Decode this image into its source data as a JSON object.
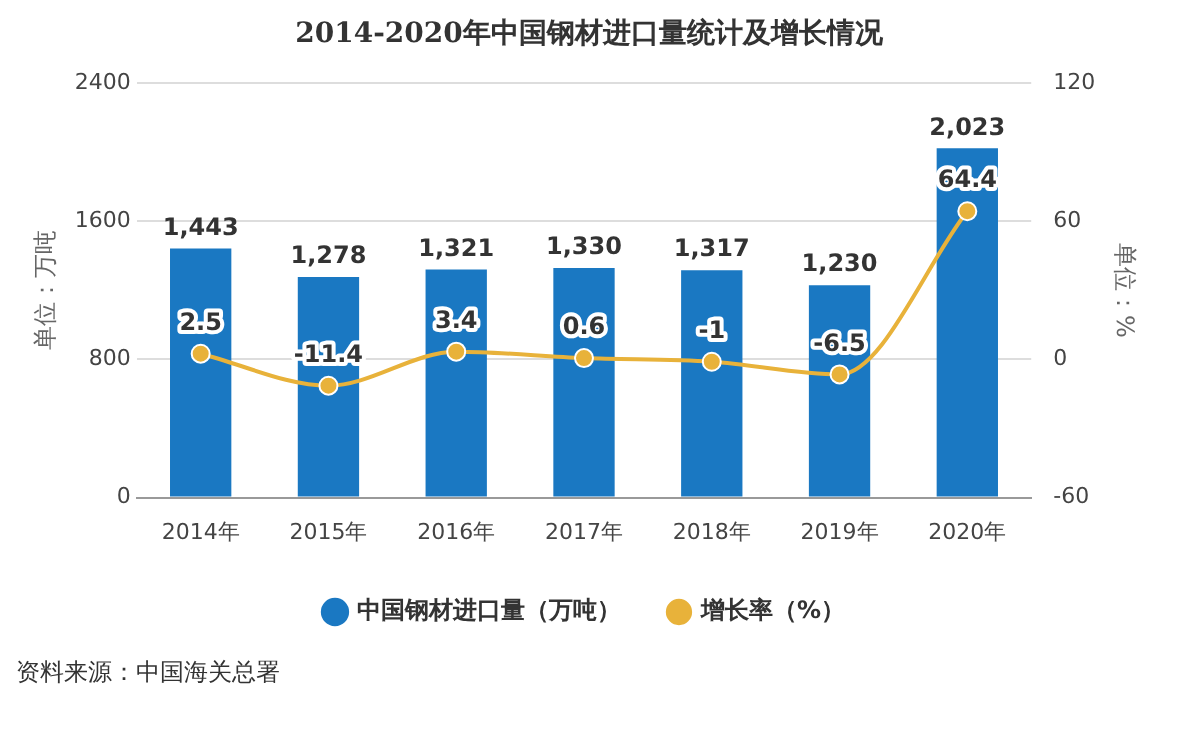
{
  "chart_data": {
    "type": "bar",
    "title": "2014-2020年中国钢材进口量统计及增长情况",
    "categories": [
      "2014年",
      "2015年",
      "2016年",
      "2017年",
      "2018年",
      "2019年",
      "2020年"
    ],
    "series": [
      {
        "name": "中国钢材进口量（万吨）",
        "color": "#1a78c2",
        "values": [
          1443,
          1278,
          1321,
          1330,
          1317,
          1230,
          2023
        ],
        "value_labels": [
          "1,443",
          "1,278",
          "1,321",
          "1,330",
          "1,317",
          "1,230",
          "2,023"
        ]
      },
      {
        "name": "增长率（%）",
        "type": "line",
        "axis": "y2",
        "color": "#e8b23a",
        "values": [
          2.5,
          -11.4,
          3.4,
          0.6,
          -1,
          -6.5,
          64.4
        ],
        "value_labels": [
          "2.5",
          "-11.4",
          "3.4",
          "0.6",
          "-1",
          "-6.5",
          "64.4"
        ]
      }
    ],
    "ylabel": "单位：万吨",
    "y2label": "单位：%",
    "ylim": [
      0,
      2400
    ],
    "yticks": [
      0,
      800,
      1600,
      2400
    ],
    "y2lim": [
      -60,
      120
    ],
    "y2ticks": [
      -60,
      0,
      60,
      120
    ],
    "grid": "y",
    "legend": "bottom",
    "marker": "circle",
    "annotations": [
      "资料来源：中国海关总署"
    ]
  }
}
